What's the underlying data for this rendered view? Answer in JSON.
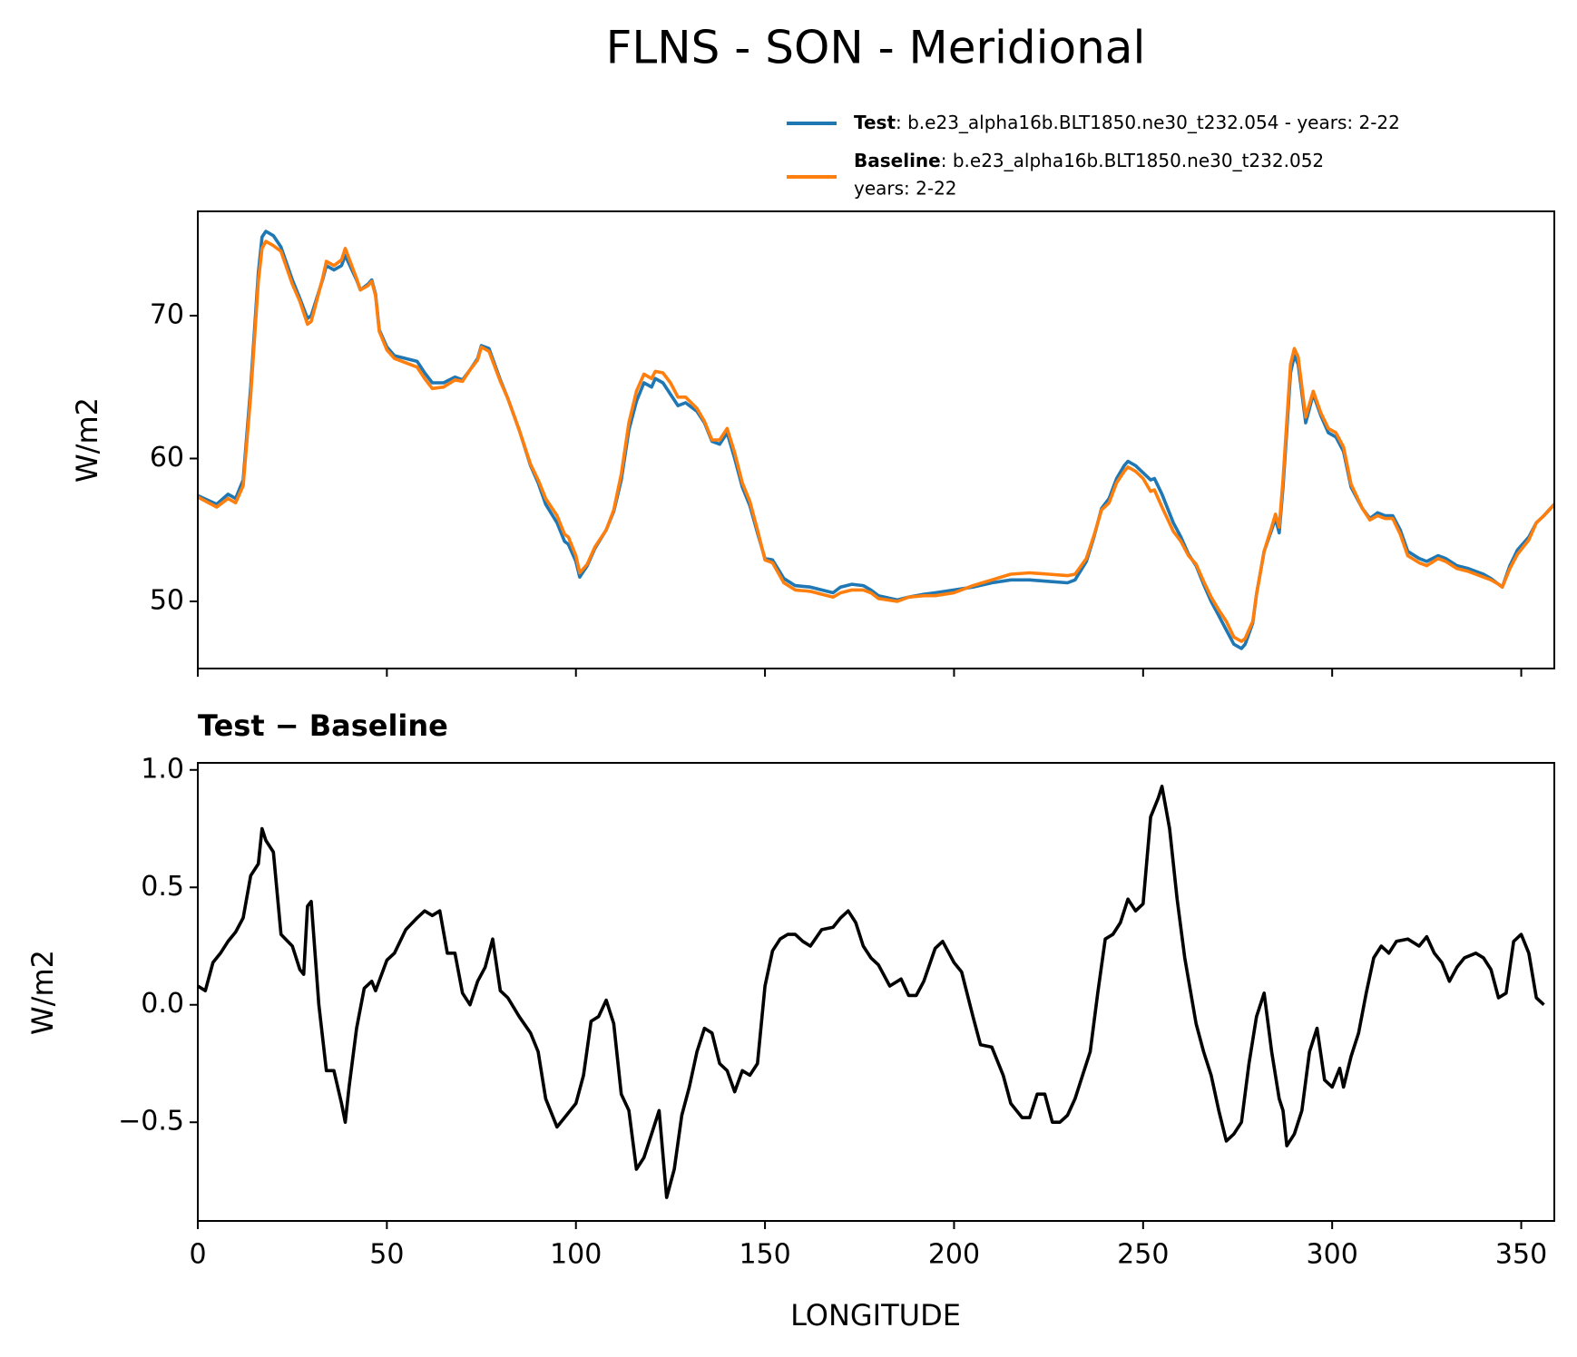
{
  "chart_data": [
    {
      "type": "line",
      "title": "FLNS - SON - Meridional",
      "ylabel": "W/m2",
      "x": [
        0,
        5,
        8,
        10,
        12,
        14,
        16,
        17,
        18,
        20,
        22,
        25,
        27,
        29,
        30,
        33,
        34,
        36,
        38,
        39,
        42,
        43,
        45,
        46,
        47,
        48,
        50,
        52,
        55,
        58,
        60,
        62,
        65,
        68,
        70,
        72,
        74,
        75,
        77,
        80,
        82,
        85,
        88,
        90,
        92,
        95,
        97,
        98,
        100,
        101,
        103,
        105,
        108,
        110,
        112,
        114,
        116,
        118,
        120,
        121,
        123,
        125,
        127,
        129,
        132,
        134,
        136,
        138,
        140,
        142,
        144,
        146,
        148,
        150,
        152,
        155,
        158,
        162,
        165,
        168,
        170,
        173,
        176,
        178,
        180,
        185,
        188,
        192,
        195,
        200,
        205,
        210,
        215,
        220,
        225,
        230,
        232,
        235,
        237,
        239,
        241,
        243,
        245,
        246,
        248,
        250,
        252,
        253,
        255,
        258,
        260,
        262,
        264,
        266,
        268,
        270,
        272,
        274,
        276,
        277,
        279,
        280,
        282,
        284,
        285,
        286,
        287,
        288,
        289,
        290,
        291,
        293,
        295,
        297,
        299,
        301,
        303,
        305,
        308,
        310,
        312,
        314,
        316,
        318,
        320,
        323,
        325,
        328,
        330,
        333,
        336,
        340,
        342,
        344,
        345,
        347,
        349,
        352,
        354,
        356,
        358.75
      ],
      "series": [
        {
          "name": "Test",
          "description": ": b.e23_alpha16b.BLT1850.ne30_t232.054 - years: 2-22",
          "color": "#1f77b4",
          "values": [
            57.4,
            56.8,
            57.5,
            57.2,
            58.5,
            65.0,
            73.0,
            75.5,
            75.9,
            75.6,
            74.8,
            72.5,
            71.2,
            69.8,
            70.0,
            72.5,
            73.5,
            73.2,
            73.5,
            74.2,
            72.5,
            71.8,
            72.2,
            72.5,
            71.5,
            69.0,
            67.8,
            67.2,
            67.0,
            66.8,
            66.0,
            65.3,
            65.3,
            65.7,
            65.5,
            66.2,
            67.0,
            67.9,
            67.7,
            65.5,
            64.2,
            62.0,
            59.5,
            58.3,
            56.8,
            55.5,
            54.2,
            54.0,
            52.8,
            51.7,
            52.5,
            53.7,
            55.0,
            56.3,
            58.5,
            62.0,
            64.0,
            65.3,
            65.0,
            65.6,
            65.3,
            64.5,
            63.7,
            63.9,
            63.3,
            62.5,
            61.2,
            61.0,
            61.8,
            60.0,
            58.0,
            56.7,
            54.8,
            53.0,
            52.9,
            51.6,
            51.1,
            51.0,
            50.8,
            50.6,
            51.0,
            51.2,
            51.1,
            50.8,
            50.4,
            50.1,
            50.3,
            50.5,
            50.6,
            50.8,
            51.0,
            51.3,
            51.5,
            51.5,
            51.4,
            51.3,
            51.5,
            52.8,
            54.5,
            56.5,
            57.2,
            58.6,
            59.5,
            59.8,
            59.5,
            59.0,
            58.5,
            58.6,
            57.5,
            55.5,
            54.5,
            53.3,
            52.5,
            51.2,
            50.0,
            49.0,
            48.0,
            47.0,
            46.7,
            47.0,
            48.5,
            50.5,
            53.5,
            55.0,
            55.8,
            54.8,
            58.0,
            62.0,
            66.0,
            67.2,
            66.6,
            62.5,
            64.5,
            63.0,
            61.8,
            61.5,
            60.5,
            58.0,
            56.5,
            55.8,
            56.2,
            56.0,
            56.0,
            55.0,
            53.5,
            53.0,
            52.8,
            53.2,
            53.0,
            52.5,
            52.3,
            51.9,
            51.6,
            51.2,
            51.0,
            52.5,
            53.6,
            54.5,
            55.5,
            56.0,
            56.8
          ]
        },
        {
          "name": "Baseline",
          "description": [
            ": b.e23_alpha16b.BLT1850.ne30_t232.052",
            "years: 2-22"
          ],
          "color": "#ff7f0e",
          "values": [
            57.3,
            56.6,
            57.2,
            56.9,
            58.1,
            64.4,
            72.4,
            74.7,
            75.2,
            74.9,
            74.5,
            72.2,
            71.0,
            69.4,
            69.6,
            72.6,
            73.8,
            73.5,
            73.9,
            74.7,
            72.6,
            71.8,
            72.1,
            72.4,
            71.4,
            68.9,
            67.6,
            67.0,
            66.7,
            66.4,
            65.6,
            64.9,
            65.0,
            65.5,
            65.4,
            66.2,
            66.9,
            67.8,
            67.5,
            65.4,
            64.2,
            62.0,
            59.6,
            58.5,
            57.2,
            56.0,
            54.7,
            54.5,
            53.2,
            52.0,
            52.6,
            53.8,
            55.0,
            56.4,
            58.9,
            62.5,
            64.7,
            65.9,
            65.6,
            66.1,
            66.0,
            65.3,
            64.3,
            64.3,
            63.5,
            62.6,
            61.3,
            61.3,
            62.1,
            60.4,
            58.3,
            57.0,
            55.0,
            52.9,
            52.7,
            51.3,
            50.8,
            50.7,
            50.5,
            50.3,
            50.6,
            50.8,
            50.8,
            50.6,
            50.2,
            50.0,
            50.3,
            50.4,
            50.4,
            50.6,
            51.1,
            51.5,
            51.9,
            52.0,
            51.9,
            51.8,
            51.9,
            53.0,
            54.6,
            56.4,
            56.9,
            58.3,
            59.1,
            59.4,
            59.1,
            58.6,
            57.7,
            57.8,
            56.6,
            54.9,
            54.2,
            53.2,
            52.6,
            51.4,
            50.3,
            49.4,
            48.6,
            47.5,
            47.2,
            47.4,
            48.6,
            50.5,
            53.5,
            55.2,
            56.1,
            55.2,
            58.5,
            62.6,
            66.6,
            67.7,
            67.1,
            62.9,
            64.7,
            63.2,
            62.1,
            61.8,
            60.8,
            58.2,
            56.5,
            55.7,
            56.0,
            55.8,
            55.8,
            54.7,
            53.2,
            52.7,
            52.5,
            53.0,
            52.8,
            52.3,
            52.1,
            51.7,
            51.5,
            51.2,
            51.0,
            52.3,
            53.3,
            54.3,
            55.5,
            56.0,
            56.8
          ]
        }
      ],
      "xlim": [
        0,
        358.75
      ],
      "xticks": [
        0,
        50,
        100,
        150,
        200,
        250,
        300,
        350
      ],
      "ylim": [
        45.3,
        77.3
      ],
      "yticks": [
        50,
        60,
        70
      ]
    },
    {
      "type": "line",
      "title": "Test − Baseline",
      "xlabel": "LONGITUDE",
      "ylabel": "W/m2",
      "x": [
        0,
        2,
        4,
        6,
        8,
        10,
        12,
        14,
        16,
        17,
        18,
        20,
        22,
        25,
        27,
        28,
        29,
        30,
        32,
        34,
        36,
        38,
        39,
        40,
        42,
        44,
        46,
        47,
        50,
        52,
        55,
        58,
        60,
        62,
        64,
        66,
        68,
        70,
        72,
        74,
        76,
        78,
        80,
        82,
        85,
        88,
        90,
        92,
        95,
        97,
        100,
        102,
        104,
        106,
        108,
        110,
        112,
        114,
        116,
        118,
        120,
        122,
        124,
        126,
        128,
        130,
        132,
        134,
        136,
        138,
        140,
        142,
        144,
        146,
        148,
        150,
        152,
        154,
        156,
        158,
        160,
        162,
        165,
        168,
        170,
        172,
        174,
        176,
        178,
        180,
        183,
        186,
        188,
        190,
        192,
        195,
        197,
        200,
        202,
        205,
        207,
        210,
        213,
        215,
        218,
        220,
        222,
        224,
        226,
        228,
        230,
        232,
        234,
        236,
        238,
        240,
        242,
        244,
        246,
        248,
        250,
        252,
        254,
        255,
        257,
        259,
        261,
        264,
        266,
        268,
        270,
        272,
        274,
        276,
        278,
        280,
        282,
        284,
        286,
        287,
        288,
        290,
        292,
        294,
        296,
        298,
        300,
        302,
        303,
        305,
        307,
        309,
        311,
        313,
        315,
        317,
        320,
        323,
        325,
        327,
        329,
        331,
        333,
        335,
        338,
        340,
        342,
        344,
        346,
        348,
        350,
        352,
        354,
        356
      ],
      "series": [
        {
          "color": "#000000",
          "values": [
            0.08,
            0.06,
            0.18,
            0.22,
            0.27,
            0.31,
            0.37,
            0.55,
            0.6,
            0.75,
            0.7,
            0.65,
            0.3,
            0.25,
            0.15,
            0.13,
            0.42,
            0.44,
            0.0,
            -0.28,
            -0.28,
            -0.42,
            -0.5,
            -0.35,
            -0.1,
            0.07,
            0.1,
            0.06,
            0.19,
            0.22,
            0.32,
            0.37,
            0.4,
            0.38,
            0.4,
            0.22,
            0.22,
            0.05,
            0.0,
            0.1,
            0.16,
            0.28,
            0.06,
            0.03,
            -0.05,
            -0.12,
            -0.2,
            -0.4,
            -0.52,
            -0.48,
            -0.42,
            -0.3,
            -0.07,
            -0.05,
            0.02,
            -0.08,
            -0.38,
            -0.45,
            -0.7,
            -0.65,
            -0.55,
            -0.45,
            -0.82,
            -0.7,
            -0.47,
            -0.35,
            -0.2,
            -0.1,
            -0.12,
            -0.25,
            -0.28,
            -0.37,
            -0.28,
            -0.3,
            -0.25,
            0.08,
            0.23,
            0.28,
            0.3,
            0.3,
            0.27,
            0.25,
            0.32,
            0.33,
            0.37,
            0.4,
            0.35,
            0.25,
            0.2,
            0.17,
            0.08,
            0.11,
            0.04,
            0.04,
            0.1,
            0.24,
            0.27,
            0.18,
            0.14,
            -0.05,
            -0.17,
            -0.18,
            -0.3,
            -0.42,
            -0.48,
            -0.48,
            -0.38,
            -0.38,
            -0.5,
            -0.5,
            -0.47,
            -0.4,
            -0.3,
            -0.2,
            0.05,
            0.28,
            0.3,
            0.35,
            0.45,
            0.4,
            0.43,
            0.8,
            0.88,
            0.93,
            0.75,
            0.45,
            0.2,
            -0.08,
            -0.2,
            -0.3,
            -0.45,
            -0.58,
            -0.55,
            -0.5,
            -0.25,
            -0.05,
            0.05,
            -0.2,
            -0.4,
            -0.45,
            -0.6,
            -0.55,
            -0.45,
            -0.2,
            -0.1,
            -0.32,
            -0.35,
            -0.27,
            -0.35,
            -0.22,
            -0.12,
            0.05,
            0.2,
            0.25,
            0.22,
            0.27,
            0.28,
            0.25,
            0.29,
            0.22,
            0.18,
            0.1,
            0.16,
            0.2,
            0.22,
            0.2,
            0.15,
            0.03,
            0.05,
            0.27,
            0.3,
            0.22,
            0.03,
            0.0
          ]
        }
      ],
      "xlim": [
        0,
        358.75
      ],
      "xticks": [
        0,
        50,
        100,
        150,
        200,
        250,
        300,
        350
      ],
      "ylim": [
        -0.92,
        1.03
      ],
      "yticks": [
        {
          "value": -0.5,
          "label": "−0.5"
        },
        {
          "value": 0,
          "label": "0.0"
        },
        {
          "value": 0.5,
          "label": "0.5"
        },
        {
          "value": 1,
          "label": "1.0"
        }
      ]
    }
  ]
}
